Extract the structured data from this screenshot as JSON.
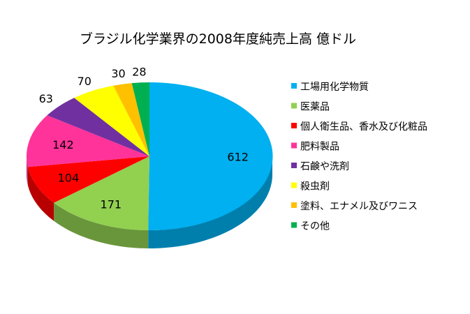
{
  "chart_data": {
    "type": "pie",
    "style": "3d-pie",
    "title": "ブラジル化学業界の2008年度純売上高 億ドル",
    "categories": [
      "工場用化学物質",
      "医薬品",
      "個人衛生品、香水及び化粧品",
      "肥料製品",
      "石鹸や洗剤",
      "殺虫剤",
      "塗料、エナメル及びワニス",
      "その他"
    ],
    "values": [
      612,
      171,
      104,
      142,
      63,
      70,
      30,
      28
    ],
    "data_labels": [
      "612",
      "171",
      "104",
      "142",
      "63",
      "70",
      "30",
      "28"
    ],
    "colors": [
      "#00B0F0",
      "#92D050",
      "#FF0000",
      "#FF3399",
      "#7030A0",
      "#FFFF00",
      "#FFC000",
      "#00B050"
    ],
    "legend_position": "right"
  }
}
